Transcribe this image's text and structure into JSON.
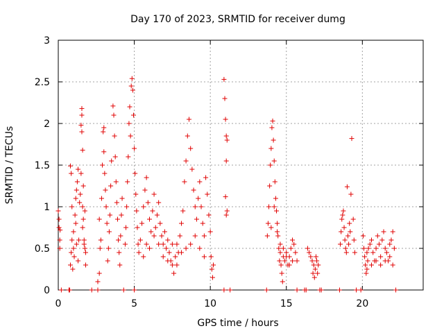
{
  "chart_data": {
    "type": "scatter",
    "title": "Day 170 of 2023, SRMTID for receiver dumg",
    "xlabel": "GPS time / hours",
    "ylabel": "SRMTID / TECUs",
    "xlim": [
      0,
      24
    ],
    "ylim": [
      0,
      3
    ],
    "xticks": [
      0,
      5,
      10,
      15,
      20
    ],
    "yticks": [
      0,
      0.5,
      1,
      1.5,
      2,
      2.5,
      3
    ],
    "xtick_labels": [
      "0",
      "5",
      "10",
      "15",
      "20"
    ],
    "ytick_labels": [
      "0",
      "0.5",
      "1",
      "1.5",
      "2",
      "2.5",
      "3"
    ],
    "grid": true,
    "marker": "+",
    "color": "#e00000",
    "series": [
      {
        "name": "SRMTID",
        "points": [
          [
            0.0,
            0.95
          ],
          [
            0.05,
            0.75
          ],
          [
            0.1,
            0.6
          ],
          [
            0.05,
            0.85
          ],
          [
            0.1,
            0.5
          ],
          [
            0.12,
            0.72
          ],
          [
            0.2,
            0.0
          ],
          [
            0.7,
            0.0
          ],
          [
            0.75,
            0.0
          ],
          [
            0.8,
            1.49
          ],
          [
            0.85,
            1.4
          ],
          [
            0.9,
            1.0
          ],
          [
            0.8,
            0.3
          ],
          [
            0.85,
            0.45
          ],
          [
            0.9,
            0.6
          ],
          [
            1.0,
            0.7
          ],
          [
            0.95,
            0.25
          ],
          [
            1.0,
            0.5
          ],
          [
            1.05,
            0.4
          ],
          [
            1.1,
            0.9
          ],
          [
            1.15,
            1.1
          ],
          [
            1.2,
            1.2
          ],
          [
            1.15,
            0.8
          ],
          [
            1.25,
            1.3
          ],
          [
            1.3,
            1.45
          ],
          [
            1.2,
            0.55
          ],
          [
            1.3,
            0.35
          ],
          [
            1.35,
            0.6
          ],
          [
            1.4,
            1.05
          ],
          [
            1.45,
            1.15
          ],
          [
            1.55,
            2.18
          ],
          [
            1.55,
            2.1
          ],
          [
            1.5,
            1.98
          ],
          [
            1.55,
            1.9
          ],
          [
            1.6,
            1.68
          ],
          [
            1.5,
            1.4
          ],
          [
            1.65,
            1.25
          ],
          [
            1.6,
            1.0
          ],
          [
            1.6,
            0.75
          ],
          [
            1.7,
            0.55
          ],
          [
            1.75,
            0.5
          ],
          [
            1.7,
            0.6
          ],
          [
            1.8,
            0.3
          ],
          [
            1.8,
            0.45
          ],
          [
            1.65,
            0.85
          ],
          [
            1.75,
            0.95
          ],
          [
            2.2,
            0.0
          ],
          [
            2.6,
            0.0
          ],
          [
            2.6,
            0.1
          ],
          [
            2.7,
            0.2
          ],
          [
            2.75,
            0.5
          ],
          [
            2.7,
            0.85
          ],
          [
            2.8,
            0.6
          ],
          [
            2.85,
            1.1
          ],
          [
            2.9,
            1.5
          ],
          [
            2.95,
            1.9
          ],
          [
            3.0,
            1.95
          ],
          [
            3.0,
            1.66
          ],
          [
            3.05,
            1.4
          ],
          [
            3.1,
            1.2
          ],
          [
            3.15,
            1.0
          ],
          [
            3.2,
            0.8
          ],
          [
            3.25,
            0.35
          ],
          [
            3.3,
            0.5
          ],
          [
            3.35,
            0.7
          ],
          [
            3.4,
            0.9
          ],
          [
            3.45,
            1.25
          ],
          [
            3.5,
            1.55
          ],
          [
            3.6,
            2.21
          ],
          [
            3.65,
            2.1
          ],
          [
            3.7,
            1.85
          ],
          [
            3.75,
            1.6
          ],
          [
            3.8,
            1.3
          ],
          [
            3.85,
            1.05
          ],
          [
            3.9,
            0.85
          ],
          [
            3.95,
            0.6
          ],
          [
            4.0,
            0.45
          ],
          [
            4.05,
            0.3
          ],
          [
            4.1,
            0.65
          ],
          [
            4.15,
            0.9
          ],
          [
            4.2,
            1.1
          ],
          [
            4.3,
            0.0
          ],
          [
            4.4,
            0.55
          ],
          [
            4.45,
            0.75
          ],
          [
            4.5,
            1.0
          ],
          [
            4.55,
            1.3
          ],
          [
            4.6,
            1.6
          ],
          [
            4.65,
            2.0
          ],
          [
            4.7,
            2.2
          ],
          [
            4.75,
            1.85
          ],
          [
            4.8,
            2.45
          ],
          [
            4.85,
            2.54
          ],
          [
            4.9,
            2.4
          ],
          [
            4.95,
            2.1
          ],
          [
            5.0,
            1.7
          ],
          [
            5.05,
            1.4
          ],
          [
            5.1,
            1.15
          ],
          [
            5.15,
            0.95
          ],
          [
            5.2,
            0.75
          ],
          [
            5.25,
            0.55
          ],
          [
            5.3,
            0.45
          ],
          [
            5.0,
            0.0
          ],
          [
            5.4,
            0.6
          ],
          [
            5.5,
            0.8
          ],
          [
            5.6,
            1.0
          ],
          [
            5.7,
            1.2
          ],
          [
            5.8,
            1.35
          ],
          [
            5.9,
            1.05
          ],
          [
            6.0,
            0.85
          ],
          [
            6.1,
            0.7
          ],
          [
            6.2,
            0.95
          ],
          [
            6.3,
            1.15
          ],
          [
            6.4,
            0.75
          ],
          [
            6.5,
            0.9
          ],
          [
            6.6,
            1.05
          ],
          [
            6.7,
            0.8
          ],
          [
            6.8,
            0.65
          ],
          [
            6.9,
            0.55
          ],
          [
            7.0,
            0.7
          ],
          [
            7.1,
            0.5
          ],
          [
            7.2,
            0.6
          ],
          [
            7.3,
            0.45
          ],
          [
            7.4,
            0.35
          ],
          [
            7.5,
            0.3
          ],
          [
            7.6,
            0.2
          ],
          [
            7.7,
            0.4
          ],
          [
            7.8,
            0.55
          ],
          [
            7.9,
            0.45
          ],
          [
            8.0,
            0.65
          ],
          [
            8.1,
            0.8
          ],
          [
            8.2,
            0.95
          ],
          [
            8.3,
            1.3
          ],
          [
            8.4,
            1.55
          ],
          [
            8.5,
            1.85
          ],
          [
            8.6,
            2.05
          ],
          [
            8.7,
            1.7
          ],
          [
            8.8,
            1.45
          ],
          [
            8.9,
            1.2
          ],
          [
            9.0,
            1.0
          ],
          [
            9.1,
            0.85
          ],
          [
            9.2,
            1.1
          ],
          [
            9.3,
            1.3
          ],
          [
            9.4,
            1.0
          ],
          [
            9.5,
            0.8
          ],
          [
            9.6,
            0.65
          ],
          [
            9.7,
            1.35
          ],
          [
            9.8,
            1.15
          ],
          [
            9.9,
            0.9
          ],
          [
            10.0,
            0.7
          ],
          [
            10.05,
            0.4
          ],
          [
            10.1,
            0.25
          ],
          [
            10.15,
            0.15
          ],
          [
            10.2,
            0.3
          ],
          [
            5.6,
            0.4
          ],
          [
            5.8,
            0.55
          ],
          [
            6.0,
            0.5
          ],
          [
            6.3,
            0.65
          ],
          [
            6.6,
            0.55
          ],
          [
            6.9,
            0.4
          ],
          [
            7.2,
            0.35
          ],
          [
            7.5,
            0.55
          ],
          [
            7.8,
            0.3
          ],
          [
            8.1,
            0.45
          ],
          [
            8.4,
            0.5
          ],
          [
            8.7,
            0.55
          ],
          [
            9.0,
            0.65
          ],
          [
            9.3,
            0.5
          ],
          [
            9.6,
            0.4
          ],
          [
            10.9,
            2.53
          ],
          [
            10.95,
            2.3
          ],
          [
            11.0,
            2.05
          ],
          [
            11.05,
            1.85
          ],
          [
            11.1,
            1.8
          ],
          [
            11.05,
            1.55
          ],
          [
            11.0,
            1.12
          ],
          [
            11.1,
            0.95
          ],
          [
            11.05,
            0.9
          ],
          [
            10.9,
            0.0
          ],
          [
            11.3,
            0.0
          ],
          [
            13.7,
            0.0
          ],
          [
            13.75,
            0.65
          ],
          [
            13.8,
            0.8
          ],
          [
            13.85,
            1.0
          ],
          [
            13.9,
            1.25
          ],
          [
            13.95,
            1.5
          ],
          [
            14.0,
            1.7
          ],
          [
            14.05,
            1.95
          ],
          [
            14.1,
            2.03
          ],
          [
            14.15,
            1.8
          ],
          [
            14.2,
            1.55
          ],
          [
            14.25,
            1.3
          ],
          [
            14.3,
            1.1
          ],
          [
            14.35,
            0.95
          ],
          [
            14.4,
            0.8
          ],
          [
            14.45,
            0.65
          ],
          [
            14.5,
            0.5
          ],
          [
            14.55,
            0.35
          ],
          [
            14.6,
            0.45
          ],
          [
            14.65,
            0.3
          ],
          [
            14.7,
            0.2
          ],
          [
            14.75,
            0.1
          ],
          [
            14.8,
            0.4
          ],
          [
            14.9,
            0.35
          ],
          [
            15.0,
            0.45
          ],
          [
            15.1,
            0.3
          ],
          [
            15.2,
            0.4
          ],
          [
            15.3,
            0.5
          ],
          [
            15.4,
            0.6
          ],
          [
            15.5,
            0.55
          ],
          [
            15.6,
            0.45
          ],
          [
            15.7,
            0.35
          ],
          [
            14.0,
            0.75
          ],
          [
            14.2,
            1.0
          ],
          [
            14.4,
            0.7
          ],
          [
            14.6,
            0.55
          ],
          [
            14.8,
            0.5
          ],
          [
            15.0,
            0.4
          ],
          [
            15.2,
            0.3
          ],
          [
            15.4,
            0.35
          ],
          [
            15.7,
            0.0
          ],
          [
            16.2,
            0.0
          ],
          [
            16.3,
            0.0
          ],
          [
            16.4,
            0.5
          ],
          [
            16.5,
            0.45
          ],
          [
            16.6,
            0.4
          ],
          [
            16.7,
            0.35
          ],
          [
            16.75,
            0.2
          ],
          [
            16.8,
            0.3
          ],
          [
            16.85,
            0.15
          ],
          [
            16.9,
            0.25
          ],
          [
            16.95,
            0.4
          ],
          [
            17.0,
            0.35
          ],
          [
            17.05,
            0.2
          ],
          [
            17.1,
            0.3
          ],
          [
            17.2,
            0.0
          ],
          [
            17.3,
            0.0
          ],
          [
            18.5,
            0.0
          ],
          [
            18.55,
            0.55
          ],
          [
            18.6,
            0.7
          ],
          [
            18.65,
            0.85
          ],
          [
            18.7,
            0.9
          ],
          [
            18.75,
            0.95
          ],
          [
            18.8,
            0.75
          ],
          [
            18.85,
            0.6
          ],
          [
            18.9,
            0.5
          ],
          [
            18.95,
            0.45
          ],
          [
            19.0,
            1.24
          ],
          [
            19.05,
            0.65
          ],
          [
            19.1,
            0.55
          ],
          [
            19.15,
            0.8
          ],
          [
            19.2,
            0.7
          ],
          [
            19.25,
            1.15
          ],
          [
            19.3,
            1.82
          ],
          [
            19.4,
            0.85
          ],
          [
            19.45,
            0.6
          ],
          [
            19.5,
            0.45
          ],
          [
            19.6,
            0.0
          ],
          [
            19.9,
            0.0
          ],
          [
            20.05,
            0.65
          ],
          [
            20.1,
            0.5
          ],
          [
            20.15,
            0.4
          ],
          [
            20.2,
            0.3
          ],
          [
            20.25,
            0.2
          ],
          [
            20.3,
            0.45
          ],
          [
            20.35,
            0.35
          ],
          [
            20.4,
            0.5
          ],
          [
            20.5,
            0.55
          ],
          [
            20.6,
            0.6
          ],
          [
            20.7,
            0.45
          ],
          [
            20.8,
            0.35
          ],
          [
            20.9,
            0.5
          ],
          [
            21.0,
            0.65
          ],
          [
            21.1,
            0.55
          ],
          [
            21.2,
            0.4
          ],
          [
            21.3,
            0.6
          ],
          [
            21.4,
            0.7
          ],
          [
            21.5,
            0.5
          ],
          [
            21.6,
            0.45
          ],
          [
            21.7,
            0.35
          ],
          [
            21.8,
            0.55
          ],
          [
            21.9,
            0.6
          ],
          [
            22.0,
            0.7
          ],
          [
            22.1,
            0.5
          ],
          [
            22.2,
            0.0
          ],
          [
            20.3,
            0.25
          ],
          [
            20.6,
            0.3
          ],
          [
            20.9,
            0.35
          ],
          [
            21.2,
            0.3
          ],
          [
            21.5,
            0.35
          ],
          [
            21.8,
            0.4
          ],
          [
            22.0,
            0.3
          ]
        ]
      }
    ]
  }
}
